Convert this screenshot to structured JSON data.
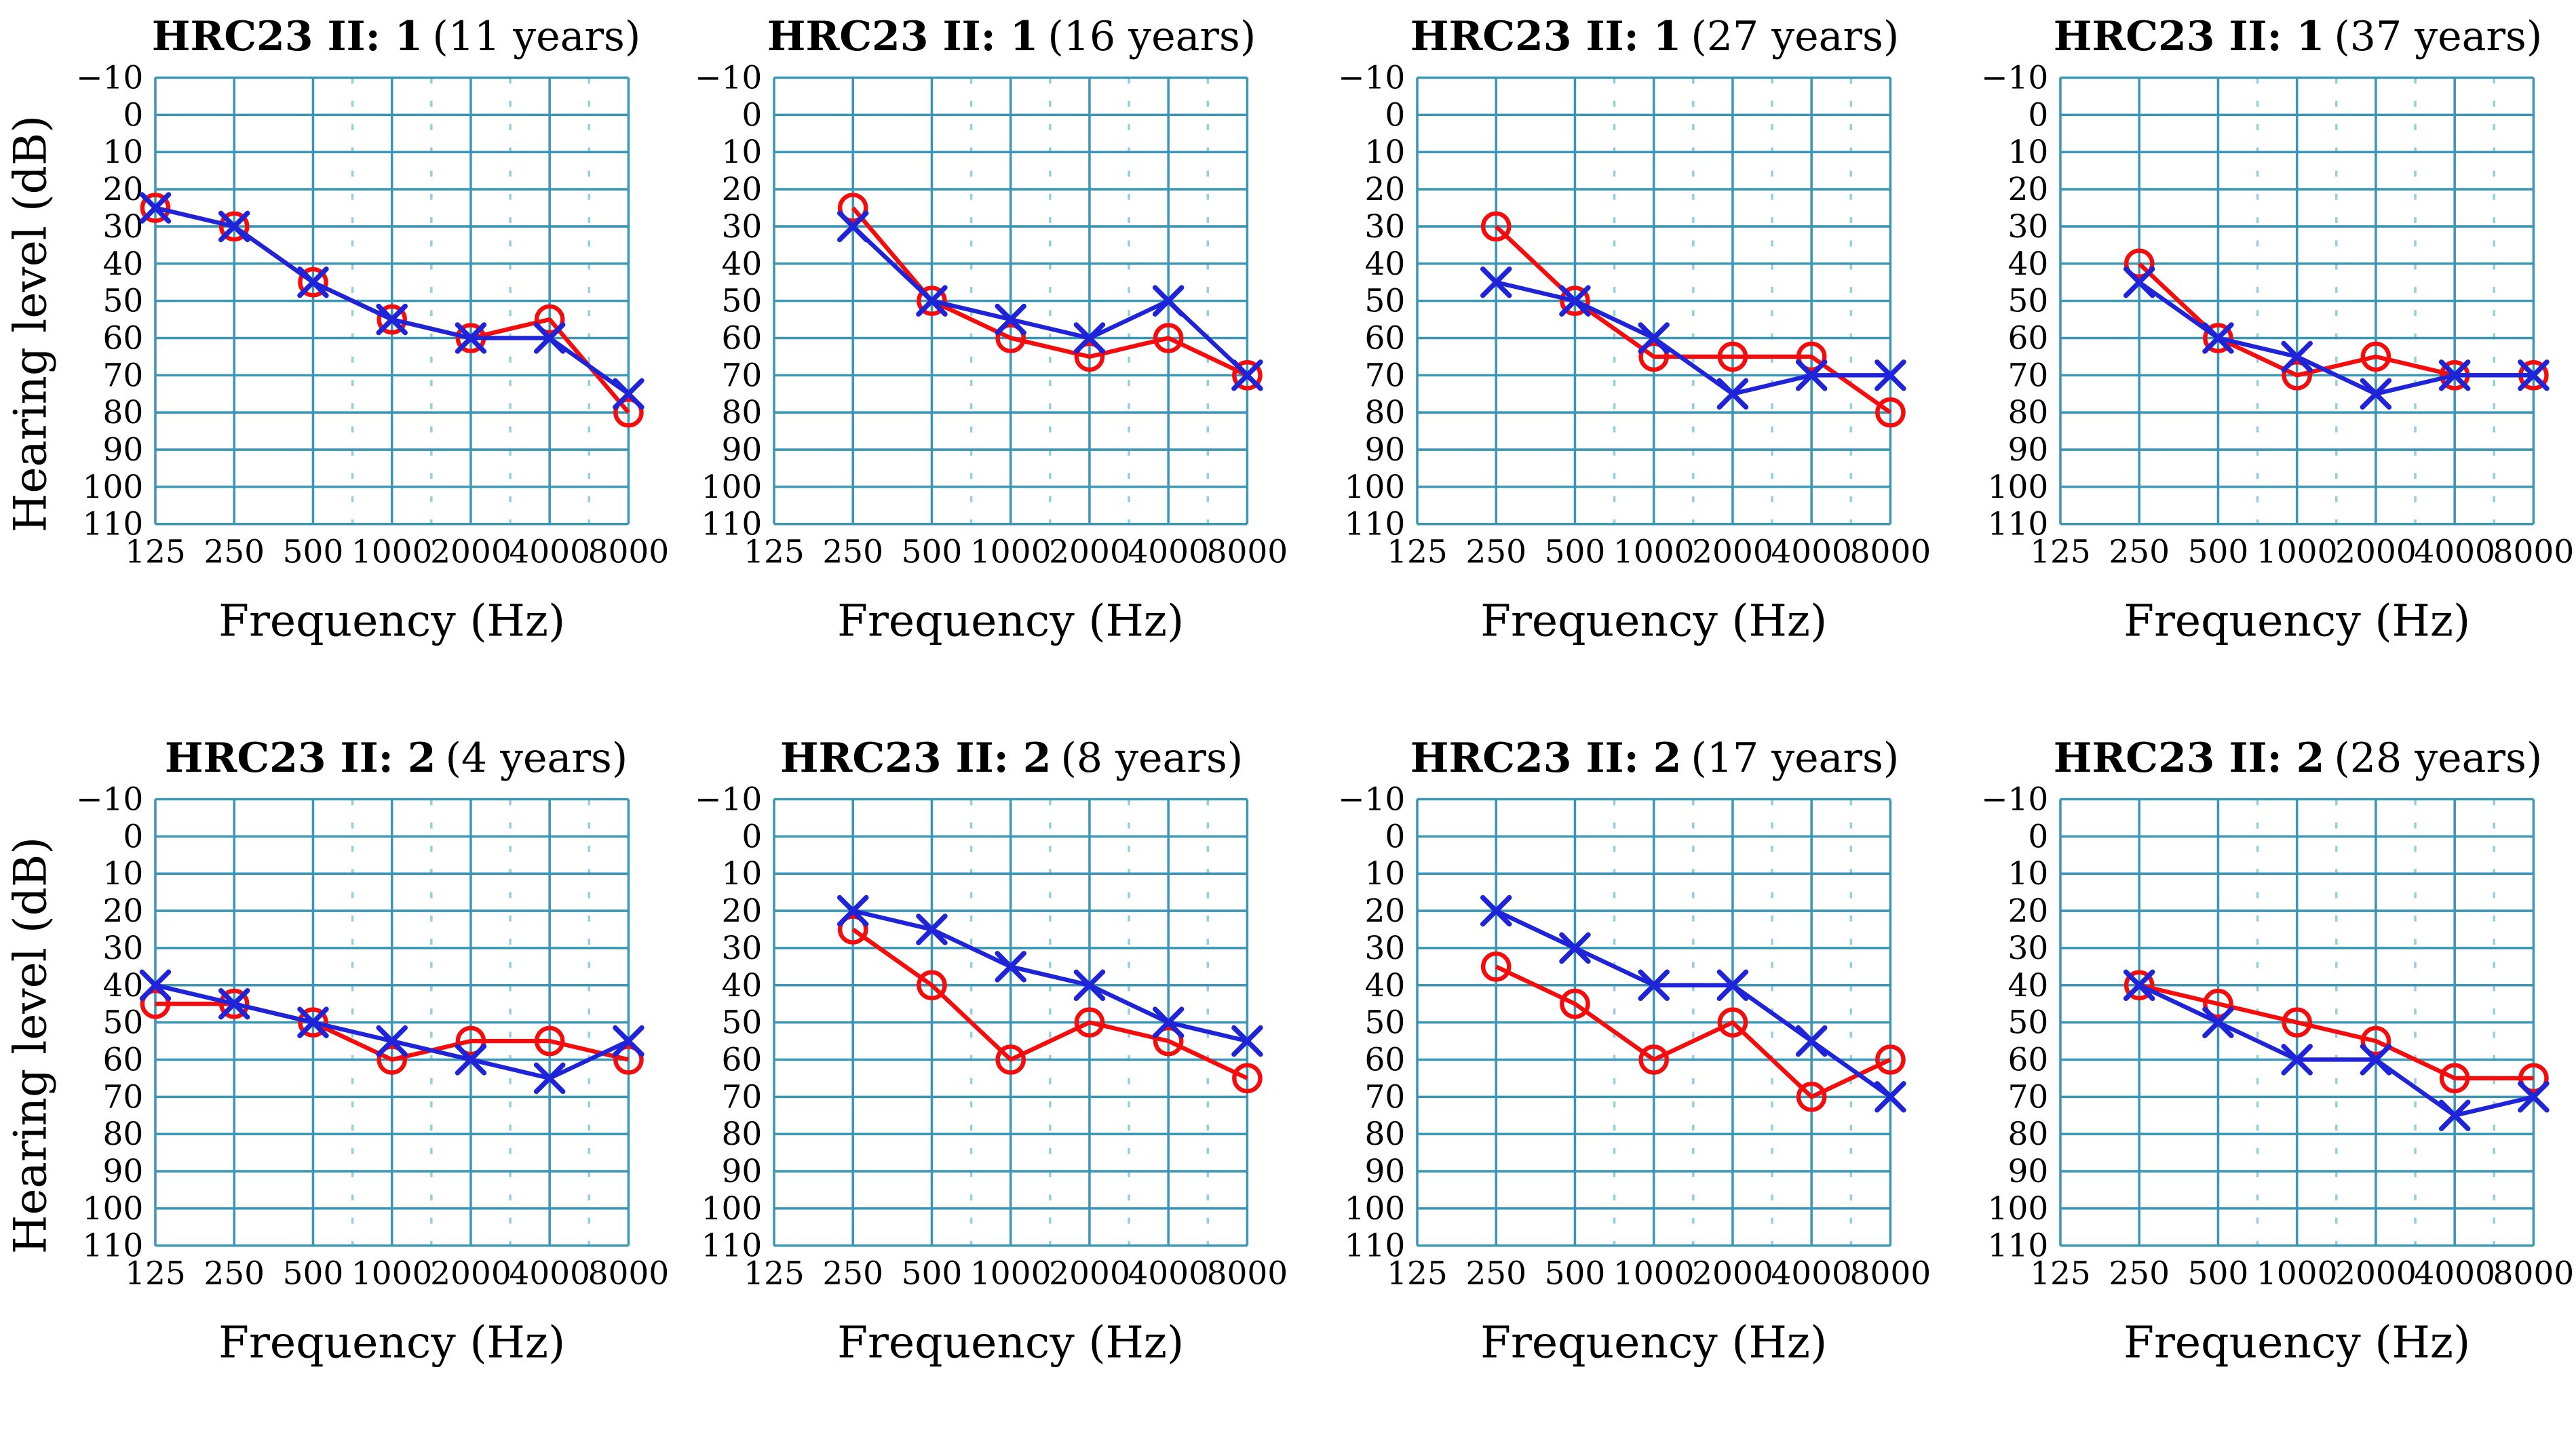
{
  "page": {
    "background": "#ffffff"
  },
  "axes": {
    "y_label": "Hearing level (dB)",
    "x_label": "Frequency (Hz)",
    "y_tick_labels": [
      "−10",
      "0",
      "10",
      "20",
      "30",
      "40",
      "50",
      "60",
      "70",
      "80",
      "90",
      "100",
      "110"
    ],
    "y_tick_values": [
      -10,
      0,
      10,
      20,
      30,
      40,
      50,
      60,
      70,
      80,
      90,
      100,
      110
    ],
    "x_ticks": [
      "125",
      "250",
      "500",
      "1000",
      "2000",
      "4000",
      "8000"
    ],
    "ylim": [
      -10,
      110
    ],
    "y_inverted": true,
    "grid": "on",
    "minor_dashed_verticals_between": [
      [
        "500",
        "1000"
      ],
      [
        "1000",
        "2000"
      ],
      [
        "2000",
        "4000"
      ],
      [
        "4000",
        "8000"
      ]
    ]
  },
  "colors": {
    "red_series": "#f50c0c",
    "blue_series": "#1f24d8",
    "grid_major": "#3a96b4",
    "grid_minor": "#96cede",
    "text": "#000000"
  },
  "chart_data": [
    {
      "type": "line",
      "title_bold": "HRC23 II: 1",
      "title_normal": "(11 years)",
      "xlabel": "Frequency (Hz)",
      "ylabel": "Hearing level (dB)",
      "x": [
        125,
        250,
        500,
        1000,
        2000,
        4000,
        8000
      ],
      "ylim": [
        -10,
        110
      ],
      "series": [
        {
          "name": "circle-series",
          "marker": "circle",
          "color": "#f50c0c",
          "x": [
            125,
            250,
            500,
            1000,
            2000,
            4000,
            8000
          ],
          "values": [
            25,
            30,
            45,
            55,
            60,
            55,
            80
          ]
        },
        {
          "name": "x-series",
          "marker": "x",
          "color": "#1f24d8",
          "x": [
            125,
            250,
            500,
            1000,
            2000,
            4000,
            8000
          ],
          "values": [
            25,
            30,
            45,
            55,
            60,
            60,
            75
          ]
        }
      ]
    },
    {
      "type": "line",
      "title_bold": "HRC23 II: 1",
      "title_normal": "(16 years)",
      "xlabel": "Frequency (Hz)",
      "ylabel": "Hearing level (dB)",
      "x": [
        125,
        250,
        500,
        1000,
        2000,
        4000,
        8000
      ],
      "ylim": [
        -10,
        110
      ],
      "series": [
        {
          "name": "circle-series",
          "marker": "circle",
          "color": "#f50c0c",
          "x": [
            250,
            500,
            1000,
            2000,
            4000,
            8000
          ],
          "values": [
            25,
            50,
            60,
            65,
            60,
            70
          ]
        },
        {
          "name": "x-series",
          "marker": "x",
          "color": "#1f24d8",
          "x": [
            250,
            500,
            1000,
            2000,
            4000,
            8000
          ],
          "values": [
            30,
            50,
            55,
            60,
            50,
            70
          ]
        }
      ]
    },
    {
      "type": "line",
      "title_bold": "HRC23 II: 1",
      "title_normal": "(27 years)",
      "xlabel": "Frequency (Hz)",
      "ylabel": "Hearing level (dB)",
      "x": [
        125,
        250,
        500,
        1000,
        2000,
        4000,
        8000
      ],
      "ylim": [
        -10,
        110
      ],
      "series": [
        {
          "name": "circle-series",
          "marker": "circle",
          "color": "#f50c0c",
          "x": [
            250,
            500,
            1000,
            2000,
            4000,
            8000
          ],
          "values": [
            30,
            50,
            65,
            65,
            65,
            80
          ]
        },
        {
          "name": "x-series",
          "marker": "x",
          "color": "#1f24d8",
          "x": [
            250,
            500,
            1000,
            2000,
            4000,
            8000
          ],
          "values": [
            45,
            50,
            60,
            75,
            70,
            70
          ]
        }
      ]
    },
    {
      "type": "line",
      "title_bold": "HRC23 II: 1",
      "title_normal": "(37 years)",
      "xlabel": "Frequency (Hz)",
      "ylabel": "Hearing level (dB)",
      "x": [
        125,
        250,
        500,
        1000,
        2000,
        4000,
        8000
      ],
      "ylim": [
        -10,
        110
      ],
      "series": [
        {
          "name": "circle-series",
          "marker": "circle",
          "color": "#f50c0c",
          "x": [
            250,
            500,
            1000,
            2000,
            4000,
            8000
          ],
          "values": [
            40,
            60,
            70,
            65,
            70,
            70
          ]
        },
        {
          "name": "x-series",
          "marker": "x",
          "color": "#1f24d8",
          "x": [
            250,
            500,
            1000,
            2000,
            4000,
            8000
          ],
          "values": [
            45,
            60,
            65,
            75,
            70,
            70
          ]
        }
      ]
    },
    {
      "type": "line",
      "title_bold": "HRC23 II: 2",
      "title_normal": "(4 years)",
      "xlabel": "Frequency (Hz)",
      "ylabel": "Hearing level (dB)",
      "x": [
        125,
        250,
        500,
        1000,
        2000,
        4000,
        8000
      ],
      "ylim": [
        -10,
        110
      ],
      "series": [
        {
          "name": "circle-series",
          "marker": "circle",
          "color": "#f50c0c",
          "x": [
            125,
            250,
            500,
            1000,
            2000,
            4000,
            8000
          ],
          "values": [
            45,
            45,
            50,
            60,
            55,
            55,
            60
          ]
        },
        {
          "name": "x-series",
          "marker": "x",
          "color": "#1f24d8",
          "x": [
            125,
            250,
            500,
            1000,
            2000,
            4000,
            8000
          ],
          "values": [
            40,
            45,
            50,
            55,
            60,
            65,
            55
          ]
        }
      ]
    },
    {
      "type": "line",
      "title_bold": "HRC23 II: 2",
      "title_normal": "(8 years)",
      "xlabel": "Frequency (Hz)",
      "ylabel": "Hearing level (dB)",
      "x": [
        125,
        250,
        500,
        1000,
        2000,
        4000,
        8000
      ],
      "ylim": [
        -10,
        110
      ],
      "series": [
        {
          "name": "circle-series",
          "marker": "circle",
          "color": "#f50c0c",
          "x": [
            250,
            500,
            1000,
            2000,
            4000,
            8000
          ],
          "values": [
            25,
            40,
            60,
            50,
            55,
            65
          ]
        },
        {
          "name": "x-series",
          "marker": "x",
          "color": "#1f24d8",
          "x": [
            250,
            500,
            1000,
            2000,
            4000,
            8000
          ],
          "values": [
            20,
            25,
            35,
            40,
            50,
            55
          ]
        }
      ]
    },
    {
      "type": "line",
      "title_bold": "HRC23 II: 2",
      "title_normal": "(17 years)",
      "xlabel": "Frequency (Hz)",
      "ylabel": "Hearing level (dB)",
      "x": [
        125,
        250,
        500,
        1000,
        2000,
        4000,
        8000
      ],
      "ylim": [
        -10,
        110
      ],
      "series": [
        {
          "name": "circle-series",
          "marker": "circle",
          "color": "#f50c0c",
          "x": [
            250,
            500,
            1000,
            2000,
            4000,
            8000
          ],
          "values": [
            35,
            45,
            60,
            50,
            70,
            60
          ]
        },
        {
          "name": "x-series",
          "marker": "x",
          "color": "#1f24d8",
          "x": [
            250,
            500,
            1000,
            2000,
            4000,
            8000
          ],
          "values": [
            20,
            30,
            40,
            40,
            55,
            70
          ]
        }
      ]
    },
    {
      "type": "line",
      "title_bold": "HRC23 II: 2",
      "title_normal": "(28 years)",
      "xlabel": "Frequency (Hz)",
      "ylabel": "Hearing level (dB)",
      "x": [
        125,
        250,
        500,
        1000,
        2000,
        4000,
        8000
      ],
      "ylim": [
        -10,
        110
      ],
      "series": [
        {
          "name": "circle-series",
          "marker": "circle",
          "color": "#f50c0c",
          "x": [
            250,
            500,
            1000,
            2000,
            4000,
            8000
          ],
          "values": [
            40,
            45,
            50,
            55,
            65,
            65
          ]
        },
        {
          "name": "x-series",
          "marker": "x",
          "color": "#1f24d8",
          "x": [
            250,
            500,
            1000,
            2000,
            4000,
            8000
          ],
          "values": [
            40,
            50,
            60,
            60,
            75,
            70
          ]
        }
      ]
    }
  ]
}
